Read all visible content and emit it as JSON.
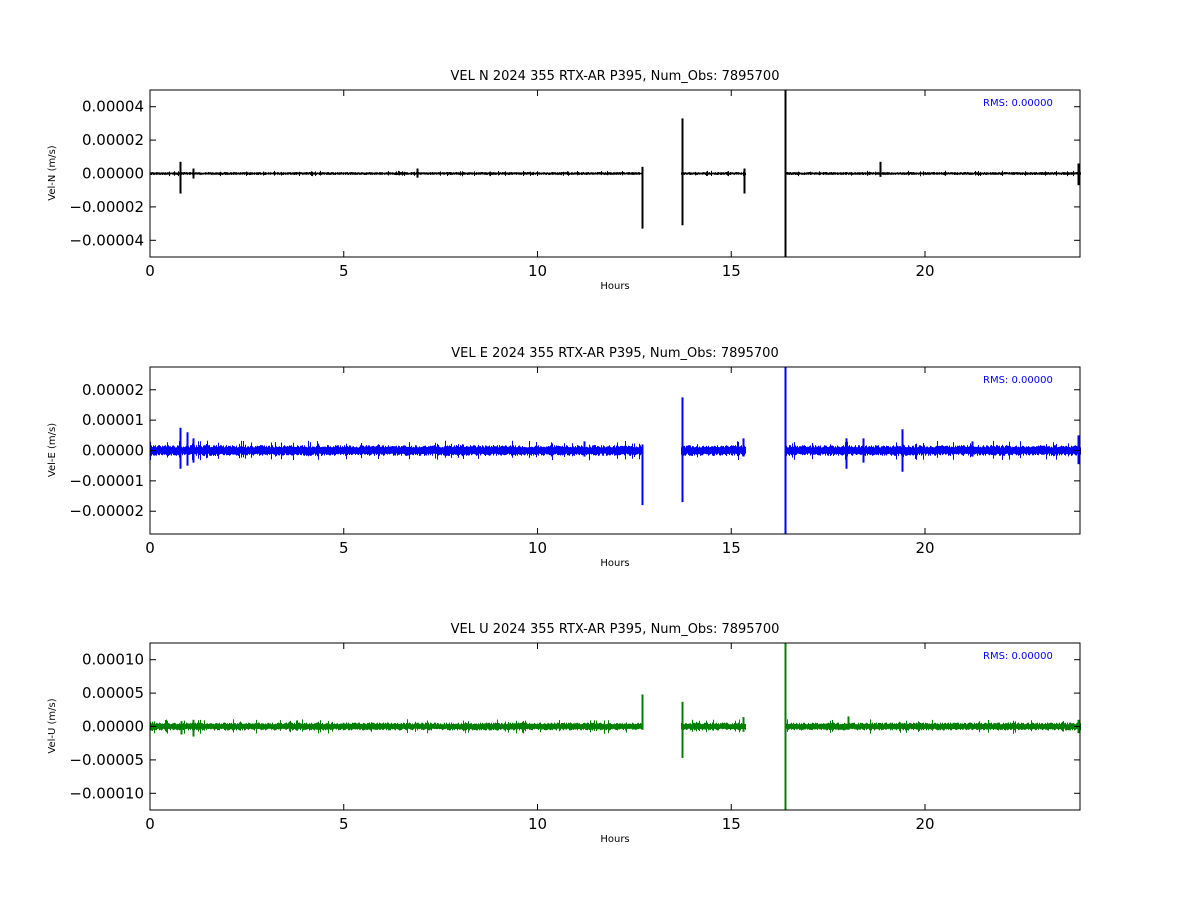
{
  "chart_data": [
    {
      "type": "line",
      "title": "VEL N 2024 355 RTX-AR  P395, Num_Obs: 7895700",
      "xlabel": "Hours",
      "ylabel": "Vel-N (m/s)",
      "xlim": [
        0,
        24
      ],
      "ylim": [
        -5e-05,
        5e-05
      ],
      "xticks": [
        0,
        5,
        10,
        15,
        20
      ],
      "xtick_labels": [
        "0",
        "5",
        "10",
        "15",
        "20"
      ],
      "yticks": [
        -4e-05,
        -2e-05,
        0,
        2e-05,
        4e-05
      ],
      "ytick_labels": [
        "−0.00004",
        "−0.00002",
        "0.00000",
        "0.00002",
        "0.00004"
      ],
      "annotation": "RMS:  0.00000",
      "annotation_color": "#0000ff",
      "color": "#000000",
      "grid": false,
      "segments": [
        [
          0,
          12.7
        ],
        [
          13.7,
          15.35
        ],
        [
          16.4,
          24
        ]
      ],
      "noise_amplitude": 9e-07,
      "spikes": [
        {
          "x": 0.78,
          "lo": -1.2e-05,
          "hi": 7e-06
        },
        {
          "x": 1.1,
          "lo": -3e-06,
          "hi": 3e-06
        },
        {
          "x": 6.9,
          "lo": -2.5e-06,
          "hi": 3e-06
        },
        {
          "x": 12.7,
          "lo": -3.3e-05,
          "hi": 4e-06
        },
        {
          "x": 13.72,
          "lo": -3.1e-05,
          "hi": 3.3e-05
        },
        {
          "x": 15.33,
          "lo": -1.2e-05,
          "hi": 3e-06
        },
        {
          "x": 16.38,
          "lo": -5e-05,
          "hi": 5e-05
        },
        {
          "x": 18.85,
          "lo": -2e-06,
          "hi": 7e-06
        },
        {
          "x": 23.95,
          "lo": -7e-06,
          "hi": 6e-06
        }
      ]
    },
    {
      "type": "line",
      "title": "VEL E 2024 355 RTX-AR  P395, Num_Obs: 7895700",
      "xlabel": "Hours",
      "ylabel": "Vel-E (m/s)",
      "xlim": [
        0,
        24
      ],
      "ylim": [
        -2.75e-05,
        2.75e-05
      ],
      "xticks": [
        0,
        5,
        10,
        15,
        20
      ],
      "xtick_labels": [
        "0",
        "5",
        "10",
        "15",
        "20"
      ],
      "yticks": [
        -2e-05,
        -1e-05,
        0,
        1e-05,
        2e-05
      ],
      "ytick_labels": [
        "−0.00002",
        "−0.00001",
        "0.00000",
        "0.00001",
        "0.00002"
      ],
      "annotation": "RMS:  0.00000",
      "annotation_color": "#0000ff",
      "color": "#0000ff",
      "grid": false,
      "segments": [
        [
          0,
          12.7
        ],
        [
          13.7,
          15.35
        ],
        [
          16.4,
          24
        ]
      ],
      "noise_amplitude": 1.8e-06,
      "spikes": [
        {
          "x": 0.78,
          "lo": -6e-06,
          "hi": 7.5e-06
        },
        {
          "x": 0.95,
          "lo": -5e-06,
          "hi": 6e-06
        },
        {
          "x": 1.1,
          "lo": -4e-06,
          "hi": 4e-06
        },
        {
          "x": 11.2,
          "lo": -2e-06,
          "hi": 3e-06
        },
        {
          "x": 12.7,
          "lo": -1.8e-05,
          "hi": 2e-06
        },
        {
          "x": 13.72,
          "lo": -1.7e-05,
          "hi": 1.75e-05
        },
        {
          "x": 15.3,
          "lo": -2e-06,
          "hi": 4e-06
        },
        {
          "x": 16.38,
          "lo": -2.75e-05,
          "hi": 2.75e-05
        },
        {
          "x": 17.95,
          "lo": -6e-06,
          "hi": 4e-06
        },
        {
          "x": 18.4,
          "lo": -4e-06,
          "hi": 4e-06
        },
        {
          "x": 19.4,
          "lo": -7e-06,
          "hi": 7e-06
        },
        {
          "x": 21.2,
          "lo": -2e-06,
          "hi": 3e-06
        },
        {
          "x": 23.95,
          "lo": -4.5e-06,
          "hi": 5e-06
        }
      ]
    },
    {
      "type": "line",
      "title": "VEL U 2024 355 RTX-AR  P395, Num_Obs: 7895700",
      "xlabel": "Hours",
      "ylabel": "Vel-U (m/s)",
      "xlim": [
        0,
        24
      ],
      "ylim": [
        -0.000125,
        0.000125
      ],
      "xticks": [
        0,
        5,
        10,
        15,
        20
      ],
      "xtick_labels": [
        "0",
        "5",
        "10",
        "15",
        "20"
      ],
      "yticks": [
        -0.0001,
        -5e-05,
        0,
        5e-05,
        0.0001
      ],
      "ytick_labels": [
        "−0.00010",
        "−0.00005",
        "0.00000",
        "0.00005",
        "0.00010"
      ],
      "annotation": "RMS:  0.00000",
      "annotation_color": "#0000ff",
      "color": "#008000",
      "grid": false,
      "segments": [
        [
          0,
          12.7
        ],
        [
          13.7,
          15.35
        ],
        [
          16.4,
          24
        ]
      ],
      "noise_amplitude": 6e-06,
      "spikes": [
        {
          "x": 0.8,
          "lo": -1.2e-05,
          "hi": 8e-06
        },
        {
          "x": 1.1,
          "lo": -1.5e-05,
          "hi": 1e-05
        },
        {
          "x": 12.7,
          "lo": -5e-06,
          "hi": 4.8e-05
        },
        {
          "x": 13.72,
          "lo": -4.7e-05,
          "hi": 3.7e-05
        },
        {
          "x": 15.3,
          "lo": -8e-06,
          "hi": 1.4e-05
        },
        {
          "x": 16.38,
          "lo": -0.000125,
          "hi": 0.000125
        },
        {
          "x": 18.0,
          "lo": -5e-06,
          "hi": 1.5e-05
        },
        {
          "x": 23.95,
          "lo": -1e-05,
          "hi": 1e-05
        }
      ]
    }
  ]
}
